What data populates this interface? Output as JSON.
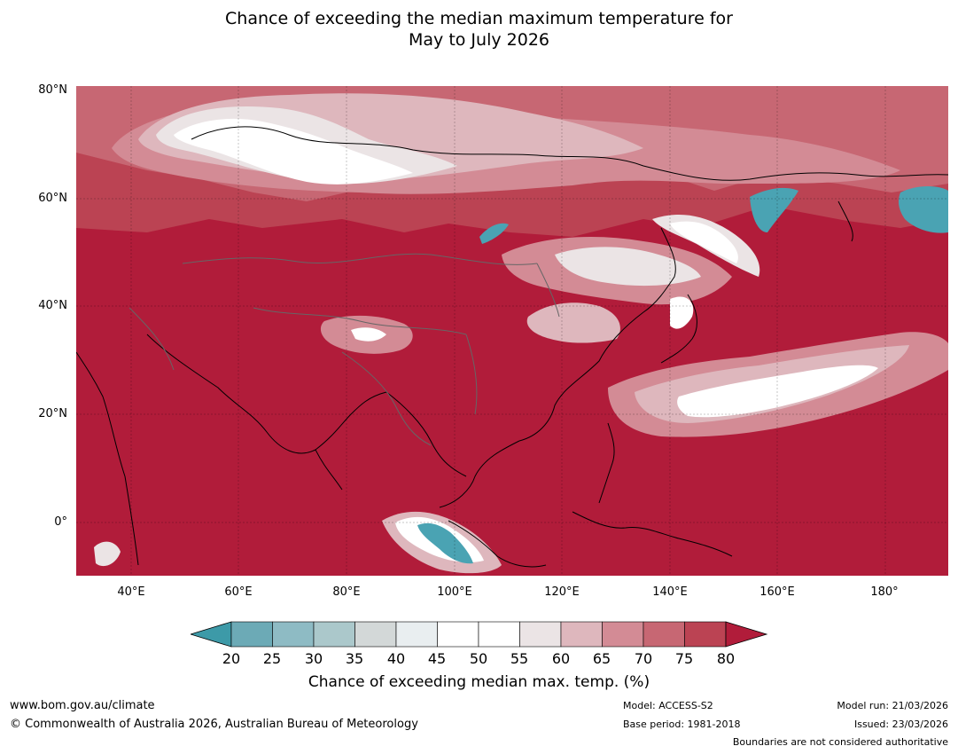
{
  "title": {
    "line1": "Chance of exceeding the median maximum temperature for",
    "line2": "May to July 2026"
  },
  "axes": {
    "latitude_labels": [
      "80°N",
      "60°N",
      "40°N",
      "20°N",
      "0°"
    ],
    "longitude_labels": [
      "40°E",
      "60°E",
      "80°E",
      "100°E",
      "120°E",
      "140°E",
      "160°E",
      "180°"
    ]
  },
  "colorbar": {
    "ticks": [
      "20",
      "25",
      "30",
      "35",
      "40",
      "45",
      "50",
      "55",
      "60",
      "65",
      "70",
      "75",
      "80"
    ],
    "colors": [
      "#3d9aa8",
      "#6caab6",
      "#8ebbc4",
      "#abc8cb",
      "#d3d8d8",
      "#e9eef0",
      "#ffffff",
      "#ffffff",
      "#ebe4e5",
      "#deb7bd",
      "#d38b95",
      "#c76773",
      "#bb4353",
      "#b11c3a"
    ],
    "label": "Chance of exceeding median max. temp. (%)"
  },
  "map_colors": {
    "base": "#b11c3a",
    "band_75": "#bb4353",
    "band_70": "#c76773",
    "band_65": "#d38b95",
    "band_60": "#deb7bd",
    "band_55": "#ebe4e5",
    "band_50": "#ffffff",
    "band_low": "#4aa3b3"
  },
  "footer": {
    "url": "www.bom.gov.au/climate",
    "copyright": "© Commonwealth of Australia 2026, Australian Bureau of Meteorology",
    "model": "Model: ACCESS-S2",
    "base_period": "Base period: 1981-2018",
    "model_run": "Model run: 21/03/2026",
    "issued": "Issued: 23/03/2026",
    "boundaries_note": "Boundaries are not considered authoritative"
  }
}
